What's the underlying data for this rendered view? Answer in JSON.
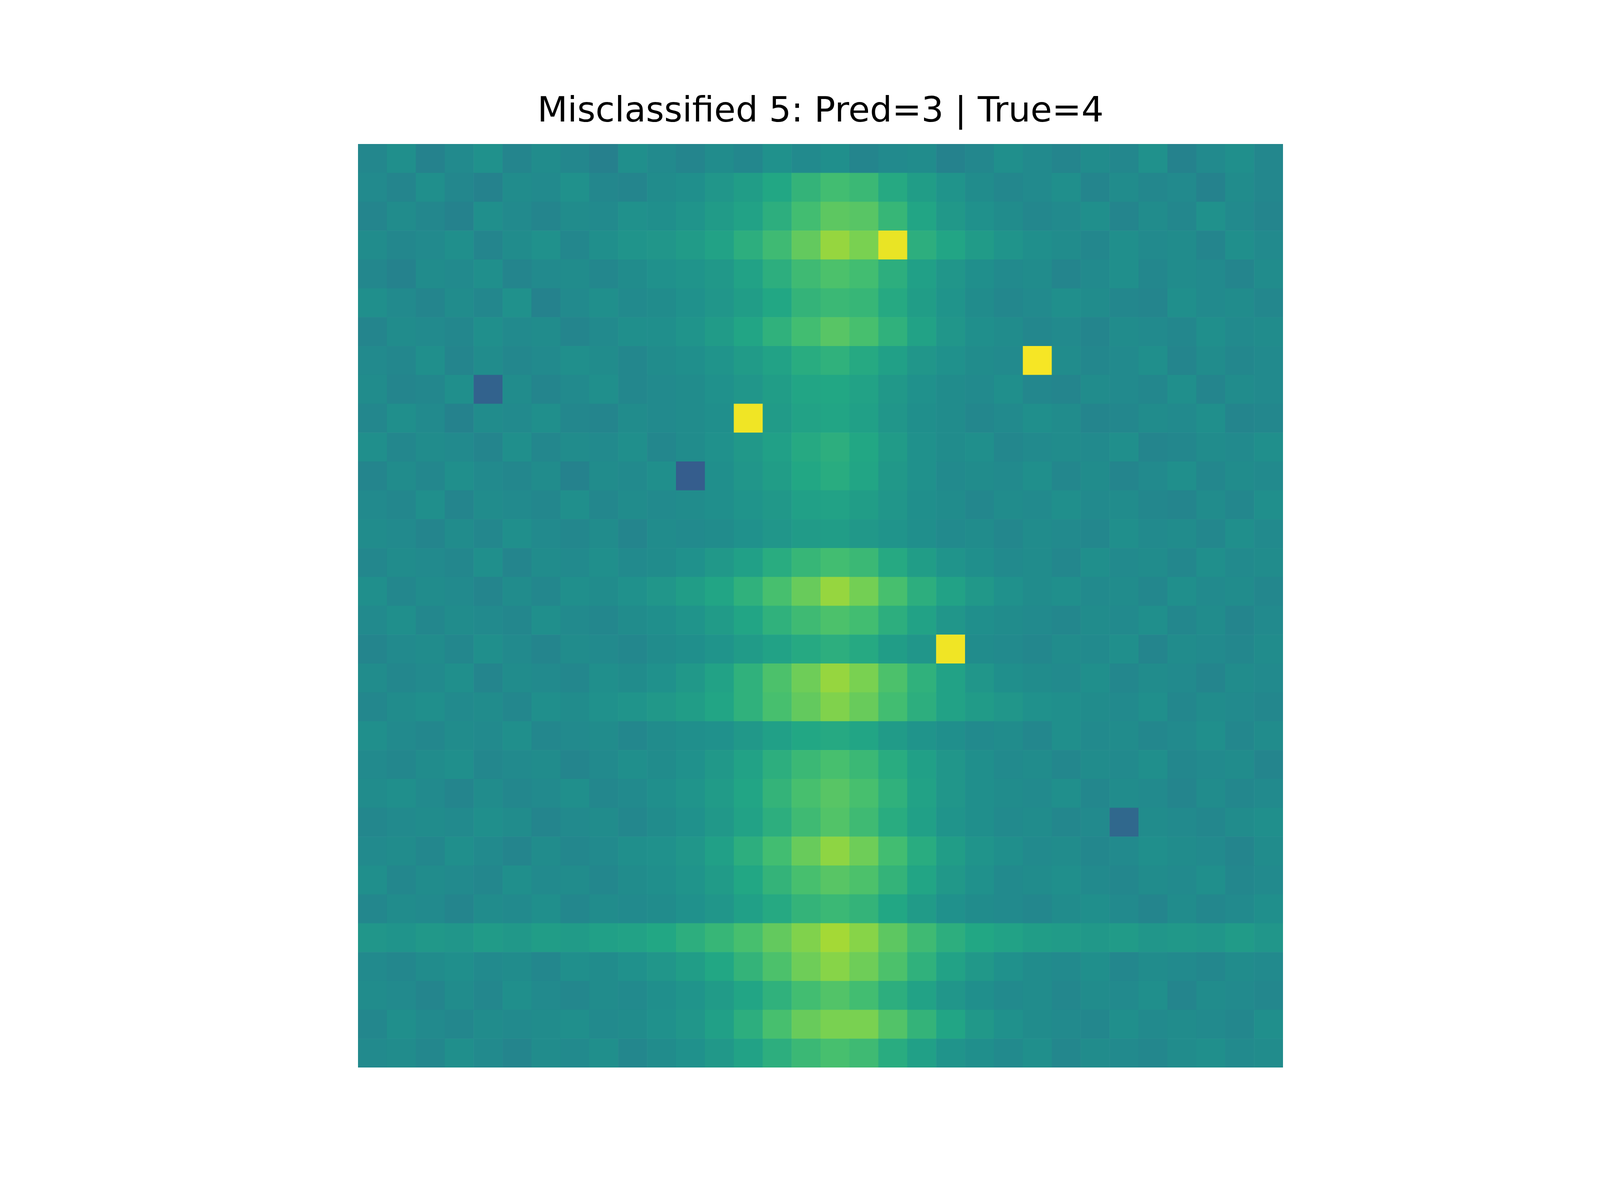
{
  "chart_data": {
    "type": "heatmap",
    "title": "Misclassified 5: Pred=3 | True=4",
    "tick_labels": false,
    "zlim": [
      0,
      95
    ],
    "cells": [
      [
        44,
        47,
        42,
        45,
        48,
        43,
        46,
        44,
        41,
        47,
        45,
        43,
        46,
        44,
        48,
        45,
        47,
        43,
        45,
        46,
        42,
        44,
        47,
        45,
        43,
        46,
        44,
        48,
        42,
        45,
        47,
        44
      ],
      [
        45,
        43,
        47,
        44,
        42,
        46,
        45,
        48,
        44,
        43,
        46,
        47,
        50,
        53,
        57,
        62,
        66,
        64,
        58,
        53,
        49,
        46,
        44,
        45,
        47,
        43,
        46,
        44,
        45,
        42,
        46,
        44
      ],
      [
        43,
        46,
        44,
        42,
        47,
        45,
        43,
        46,
        45,
        48,
        47,
        49,
        52,
        55,
        60,
        66,
        71,
        70,
        63,
        56,
        51,
        48,
        46,
        44,
        45,
        47,
        43,
        46,
        44,
        48,
        45,
        43
      ],
      [
        46,
        44,
        45,
        47,
        43,
        46,
        48,
        44,
        47,
        49,
        50,
        52,
        55,
        60,
        65,
        72,
        80,
        76,
        92,
        60,
        56,
        52,
        49,
        47,
        46,
        44,
        47,
        45,
        46,
        43,
        47,
        45
      ],
      [
        44,
        42,
        46,
        45,
        47,
        43,
        45,
        46,
        44,
        46,
        48,
        49,
        51,
        55,
        60,
        65,
        68,
        66,
        60,
        54,
        50,
        47,
        45,
        46,
        43,
        45,
        47,
        44,
        46,
        45,
        43,
        46
      ],
      [
        47,
        45,
        43,
        46,
        44,
        48,
        42,
        45,
        47,
        45,
        46,
        48,
        50,
        53,
        57,
        62,
        64,
        63,
        58,
        53,
        49,
        46,
        44,
        45,
        47,
        46,
        44,
        43,
        47,
        45,
        46,
        44
      ],
      [
        43,
        46,
        45,
        44,
        47,
        45,
        46,
        43,
        45,
        47,
        47,
        49,
        52,
        56,
        61,
        66,
        70,
        67,
        61,
        55,
        50,
        47,
        46,
        44,
        45,
        43,
        46,
        45,
        44,
        47,
        45,
        46
      ],
      [
        45,
        44,
        47,
        43,
        46,
        44,
        45,
        47,
        46,
        44,
        46,
        47,
        49,
        52,
        55,
        59,
        61,
        58,
        54,
        50,
        48,
        46,
        45,
        94,
        46,
        44,
        45,
        47,
        43,
        46,
        44,
        45
      ],
      [
        46,
        43,
        44,
        47,
        30,
        46,
        43,
        45,
        47,
        44,
        45,
        46,
        48,
        50,
        53,
        56,
        57,
        55,
        51,
        48,
        46,
        45,
        47,
        44,
        43,
        46,
        45,
        44,
        47,
        43,
        46,
        45
      ],
      [
        44,
        47,
        45,
        42,
        46,
        45,
        47,
        44,
        43,
        46,
        45,
        46,
        47,
        93,
        52,
        55,
        56,
        54,
        50,
        47,
        46,
        44,
        45,
        47,
        46,
        43,
        44,
        46,
        45,
        47,
        43,
        44
      ],
      [
        47,
        44,
        46,
        45,
        43,
        47,
        44,
        46,
        45,
        47,
        44,
        46,
        48,
        51,
        54,
        58,
        60,
        57,
        52,
        48,
        46,
        47,
        44,
        45,
        46,
        45,
        47,
        43,
        44,
        46,
        45,
        47
      ],
      [
        43,
        46,
        44,
        47,
        45,
        44,
        46,
        42,
        46,
        45,
        47,
        28,
        47,
        50,
        53,
        57,
        59,
        56,
        51,
        48,
        45,
        46,
        45,
        47,
        44,
        46,
        43,
        45,
        47,
        44,
        46,
        45
      ],
      [
        45,
        44,
        47,
        43,
        46,
        45,
        44,
        47,
        44,
        46,
        45,
        46,
        47,
        49,
        51,
        54,
        55,
        53,
        50,
        47,
        46,
        44,
        46,
        45,
        47,
        45,
        46,
        44,
        43,
        46,
        44,
        47
      ],
      [
        46,
        45,
        43,
        46,
        44,
        47,
        45,
        44,
        46,
        43,
        46,
        45,
        46,
        48,
        50,
        52,
        53,
        51,
        49,
        47,
        45,
        46,
        44,
        46,
        45,
        44,
        47,
        45,
        46,
        44,
        47,
        45
      ],
      [
        44,
        46,
        45,
        44,
        47,
        43,
        46,
        45,
        47,
        45,
        46,
        48,
        51,
        54,
        59,
        63,
        66,
        64,
        58,
        53,
        49,
        47,
        45,
        46,
        44,
        47,
        45,
        46,
        44,
        47,
        45,
        46
      ],
      [
        47,
        44,
        46,
        45,
        43,
        46,
        44,
        47,
        46,
        48,
        50,
        53,
        56,
        61,
        67,
        73,
        80,
        75,
        67,
        60,
        55,
        51,
        48,
        46,
        47,
        45,
        46,
        44,
        47,
        45,
        46,
        44
      ],
      [
        45,
        47,
        44,
        46,
        45,
        44,
        47,
        45,
        44,
        46,
        47,
        49,
        52,
        56,
        61,
        65,
        68,
        66,
        60,
        55,
        50,
        47,
        46,
        45,
        44,
        46,
        45,
        47,
        44,
        46,
        43,
        45
      ],
      [
        43,
        45,
        46,
        44,
        47,
        45,
        43,
        46,
        45,
        44,
        46,
        47,
        49,
        52,
        55,
        58,
        60,
        58,
        53,
        50,
        93,
        46,
        45,
        44,
        46,
        45,
        47,
        43,
        46,
        45,
        44,
        46
      ],
      [
        46,
        44,
        45,
        47,
        43,
        46,
        45,
        44,
        47,
        46,
        48,
        51,
        55,
        61,
        68,
        74,
        80,
        76,
        68,
        61,
        55,
        50,
        47,
        46,
        45,
        47,
        44,
        46,
        45,
        43,
        46,
        45
      ],
      [
        44,
        46,
        47,
        45,
        46,
        44,
        47,
        46,
        48,
        49,
        51,
        53,
        56,
        61,
        67,
        72,
        77,
        73,
        66,
        60,
        55,
        52,
        50,
        48,
        47,
        46,
        45,
        47,
        44,
        46,
        45,
        44
      ],
      [
        47,
        45,
        44,
        46,
        45,
        47,
        44,
        45,
        46,
        44,
        46,
        47,
        48,
        51,
        54,
        57,
        58,
        56,
        52,
        49,
        47,
        45,
        46,
        44,
        47,
        45,
        46,
        44,
        45,
        47,
        44,
        46
      ],
      [
        45,
        44,
        46,
        47,
        44,
        45,
        46,
        43,
        45,
        47,
        46,
        48,
        51,
        55,
        60,
        64,
        67,
        64,
        59,
        54,
        50,
        47,
        45,
        46,
        44,
        46,
        45,
        47,
        44,
        45,
        46,
        43
      ],
      [
        46,
        47,
        45,
        43,
        46,
        44,
        45,
        47,
        44,
        45,
        47,
        49,
        52,
        56,
        62,
        67,
        70,
        67,
        61,
        55,
        50,
        47,
        46,
        45,
        47,
        44,
        46,
        45,
        43,
        46,
        44,
        45
      ],
      [
        44,
        45,
        46,
        45,
        47,
        46,
        43,
        45,
        46,
        44,
        46,
        48,
        51,
        55,
        60,
        65,
        69,
        65,
        59,
        54,
        49,
        47,
        45,
        46,
        44,
        45,
        32,
        46,
        45,
        44,
        46,
        47
      ],
      [
        45,
        46,
        44,
        47,
        45,
        43,
        46,
        44,
        45,
        47,
        48,
        50,
        54,
        60,
        66,
        73,
        79,
        74,
        66,
        59,
        53,
        49,
        47,
        45,
        46,
        44,
        45,
        47,
        46,
        45,
        43,
        46
      ],
      [
        47,
        44,
        46,
        45,
        44,
        47,
        45,
        46,
        44,
        46,
        47,
        49,
        52,
        57,
        62,
        67,
        70,
        68,
        62,
        56,
        51,
        48,
        45,
        46,
        47,
        45,
        44,
        46,
        45,
        47,
        44,
        45
      ],
      [
        44,
        46,
        45,
        43,
        46,
        45,
        47,
        44,
        46,
        45,
        46,
        48,
        50,
        54,
        58,
        62,
        64,
        62,
        57,
        52,
        48,
        46,
        45,
        44,
        46,
        47,
        45,
        43,
        46,
        44,
        45,
        47
      ],
      [
        50,
        49,
        51,
        50,
        52,
        51,
        53,
        52,
        54,
        55,
        57,
        60,
        63,
        67,
        72,
        77,
        82,
        78,
        71,
        65,
        60,
        57,
        55,
        53,
        52,
        51,
        52,
        50,
        51,
        50,
        52,
        50
      ],
      [
        45,
        44,
        46,
        47,
        45,
        46,
        44,
        47,
        46,
        48,
        50,
        53,
        57,
        62,
        68,
        74,
        78,
        74,
        68,
        61,
        55,
        51,
        48,
        46,
        45,
        47,
        44,
        46,
        45,
        44,
        46,
        45
      ],
      [
        46,
        45,
        43,
        46,
        44,
        47,
        45,
        44,
        46,
        45,
        47,
        49,
        52,
        56,
        61,
        66,
        69,
        66,
        60,
        55,
        50,
        47,
        45,
        46,
        44,
        46,
        45,
        47,
        43,
        46,
        45,
        44
      ],
      [
        44,
        47,
        45,
        44,
        46,
        45,
        46,
        47,
        45,
        46,
        48,
        50,
        54,
        60,
        67,
        73,
        76,
        76,
        69,
        62,
        56,
        51,
        48,
        46,
        45,
        44,
        47,
        45,
        46,
        45,
        44,
        47
      ],
      [
        45,
        46,
        44,
        47,
        45,
        43,
        46,
        45,
        47,
        44,
        46,
        48,
        51,
        55,
        60,
        64,
        67,
        65,
        59,
        54,
        49,
        47,
        45,
        47,
        44,
        46,
        45,
        44,
        46,
        47,
        45,
        46
      ]
    ]
  }
}
